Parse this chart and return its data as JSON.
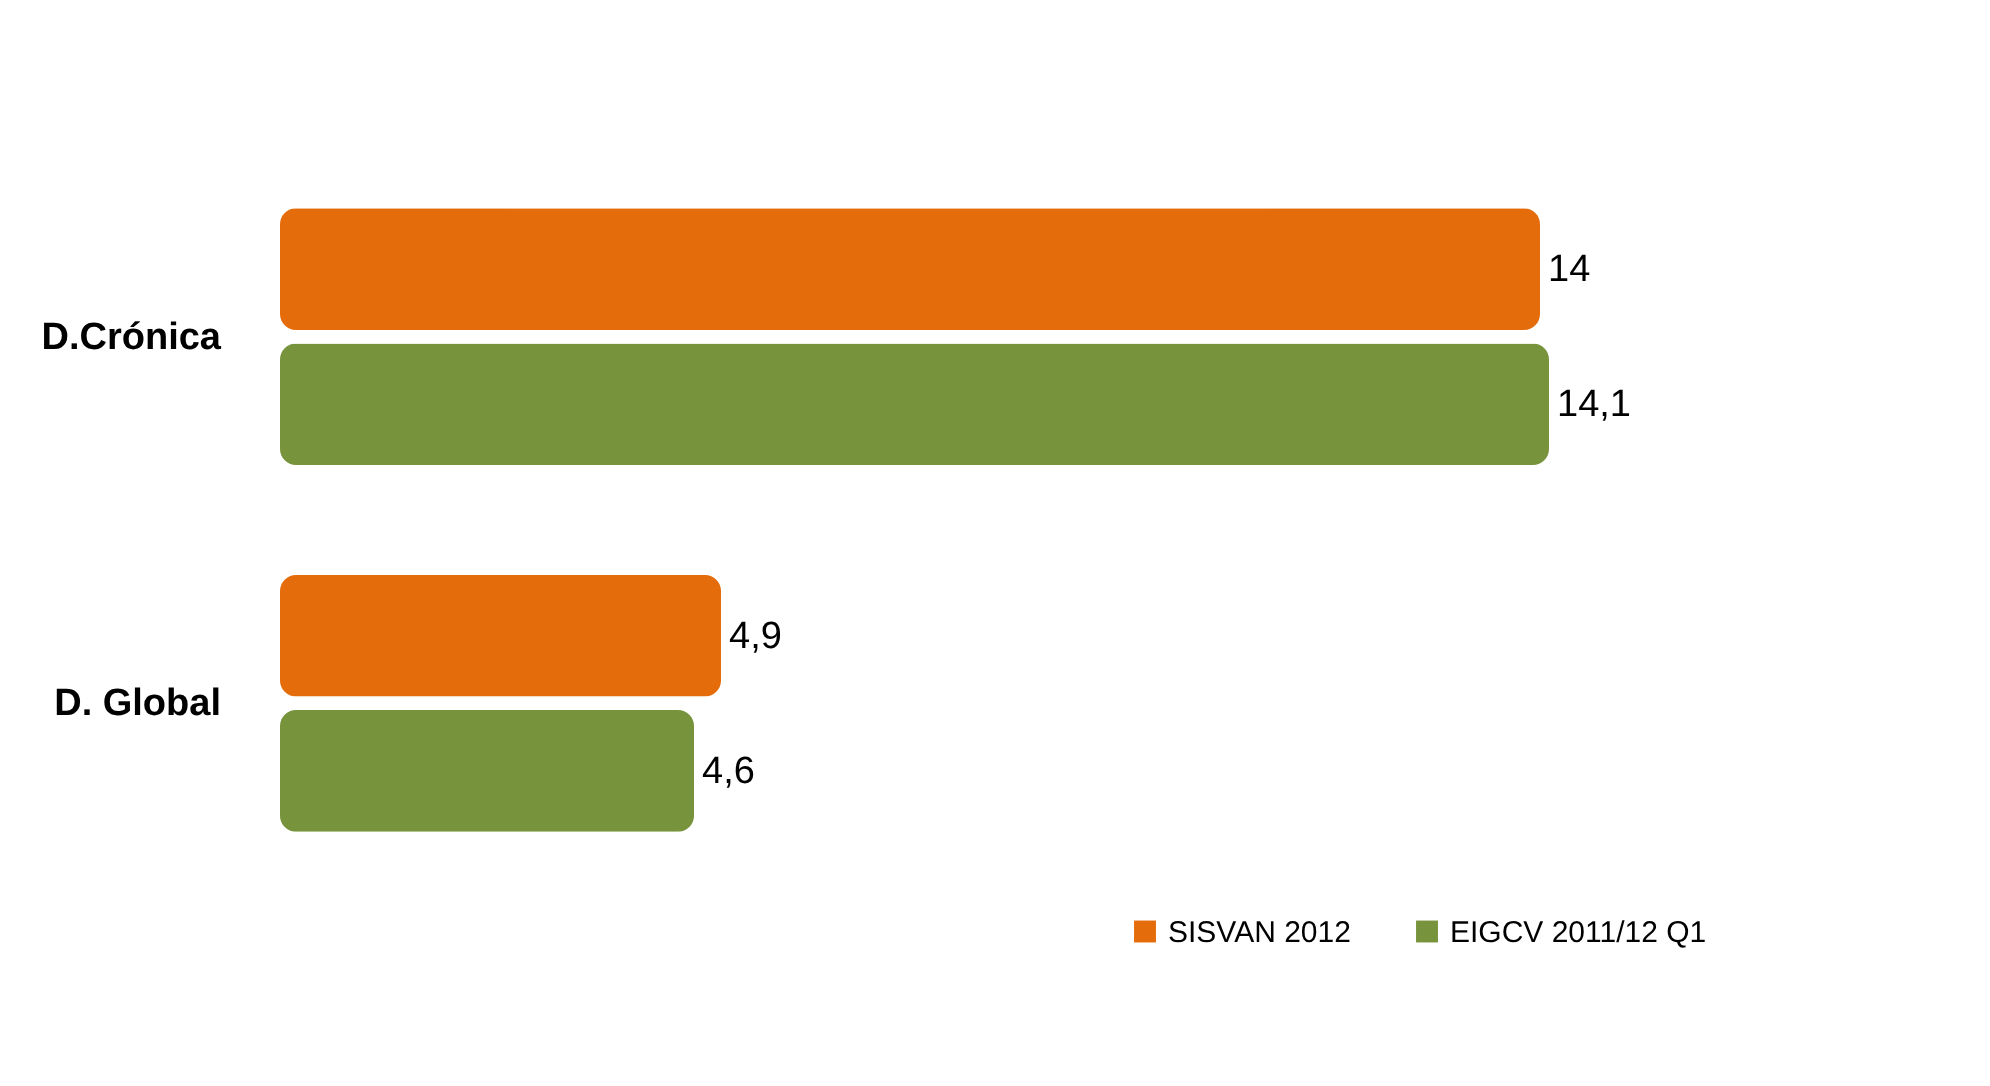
{
  "chart_data": {
    "type": "bar",
    "orientation": "horizontal",
    "categories": [
      "D.Crónica",
      "D. Global"
    ],
    "series": [
      {
        "name": "SISVAN 2012",
        "color": "#e46c0a",
        "values": [
          14,
          4.9
        ],
        "value_labels": [
          "14",
          "4,9"
        ]
      },
      {
        "name": "EIGCV 2011/12 Q1",
        "color": "#77933c",
        "values": [
          14.1,
          4.6
        ],
        "value_labels": [
          "14,1",
          "4,6"
        ]
      }
    ],
    "tick_labels": "y",
    "legend": "bottom right"
  }
}
